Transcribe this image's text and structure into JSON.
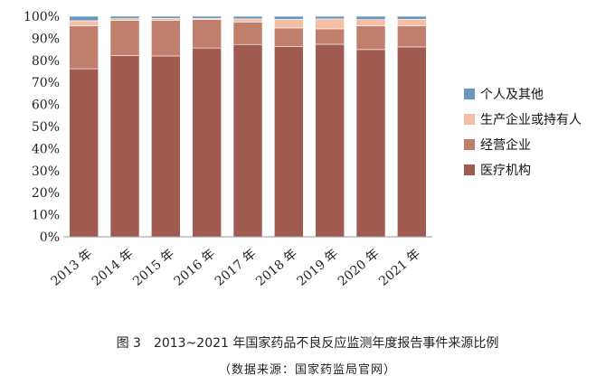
{
  "chart_data": {
    "type": "bar",
    "stacked": true,
    "categories": [
      "2013 年",
      "2014 年",
      "2015 年",
      "2016 年",
      "2017 年",
      "2018 年",
      "2019 年",
      "2020 年",
      "2021 年"
    ],
    "series": [
      {
        "name": "医疗机构",
        "color": "#a05a50",
        "values": [
          76.2,
          82.1,
          82.0,
          85.6,
          87.2,
          86.2,
          87.3,
          84.9,
          86.1
        ]
      },
      {
        "name": "经营企业",
        "color": "#c07f6c",
        "values": [
          19.5,
          16.0,
          16.2,
          12.9,
          10.2,
          8.5,
          7.0,
          10.8,
          9.6
        ]
      },
      {
        "name": "生产企业或持有人",
        "color": "#f4bfa2",
        "values": [
          2.3,
          0.8,
          0.8,
          0.5,
          1.4,
          3.9,
          4.5,
          2.8,
          2.9
        ]
      },
      {
        "name": "个人及其他",
        "color": "#6a95c1",
        "values": [
          2.0,
          1.1,
          1.0,
          1.0,
          1.2,
          1.4,
          1.2,
          1.5,
          1.4
        ]
      }
    ],
    "yticks": [
      "0%",
      "10%",
      "20%",
      "30%",
      "40%",
      "50%",
      "60%",
      "70%",
      "80%",
      "90%",
      "100%"
    ],
    "ylim": [
      0,
      100
    ],
    "legend_position": "right",
    "legend_order": [
      "个人及其他",
      "生产企业或持有人",
      "经营企业",
      "医疗机构"
    ]
  },
  "caption": {
    "title": "图 3　2013~2021 年国家药品不良反应监测年度报告事件来源比例",
    "source": "（数据来源：国家药监局官网）"
  }
}
